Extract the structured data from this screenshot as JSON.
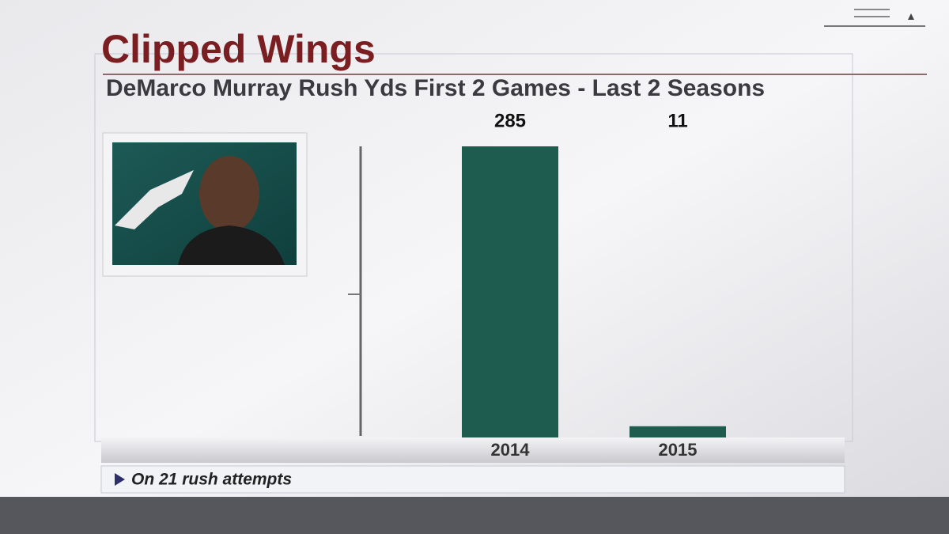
{
  "chart_data": {
    "type": "bar",
    "title": "Clipped Wings",
    "subtitle": "DeMarco Murray Rush Yds First 2 Games - Last 2 Seasons",
    "categories": [
      "2014",
      "2015"
    ],
    "values": [
      285,
      11
    ],
    "color": "#1f5c50",
    "footnote": "On 21 rush attempts"
  }
}
